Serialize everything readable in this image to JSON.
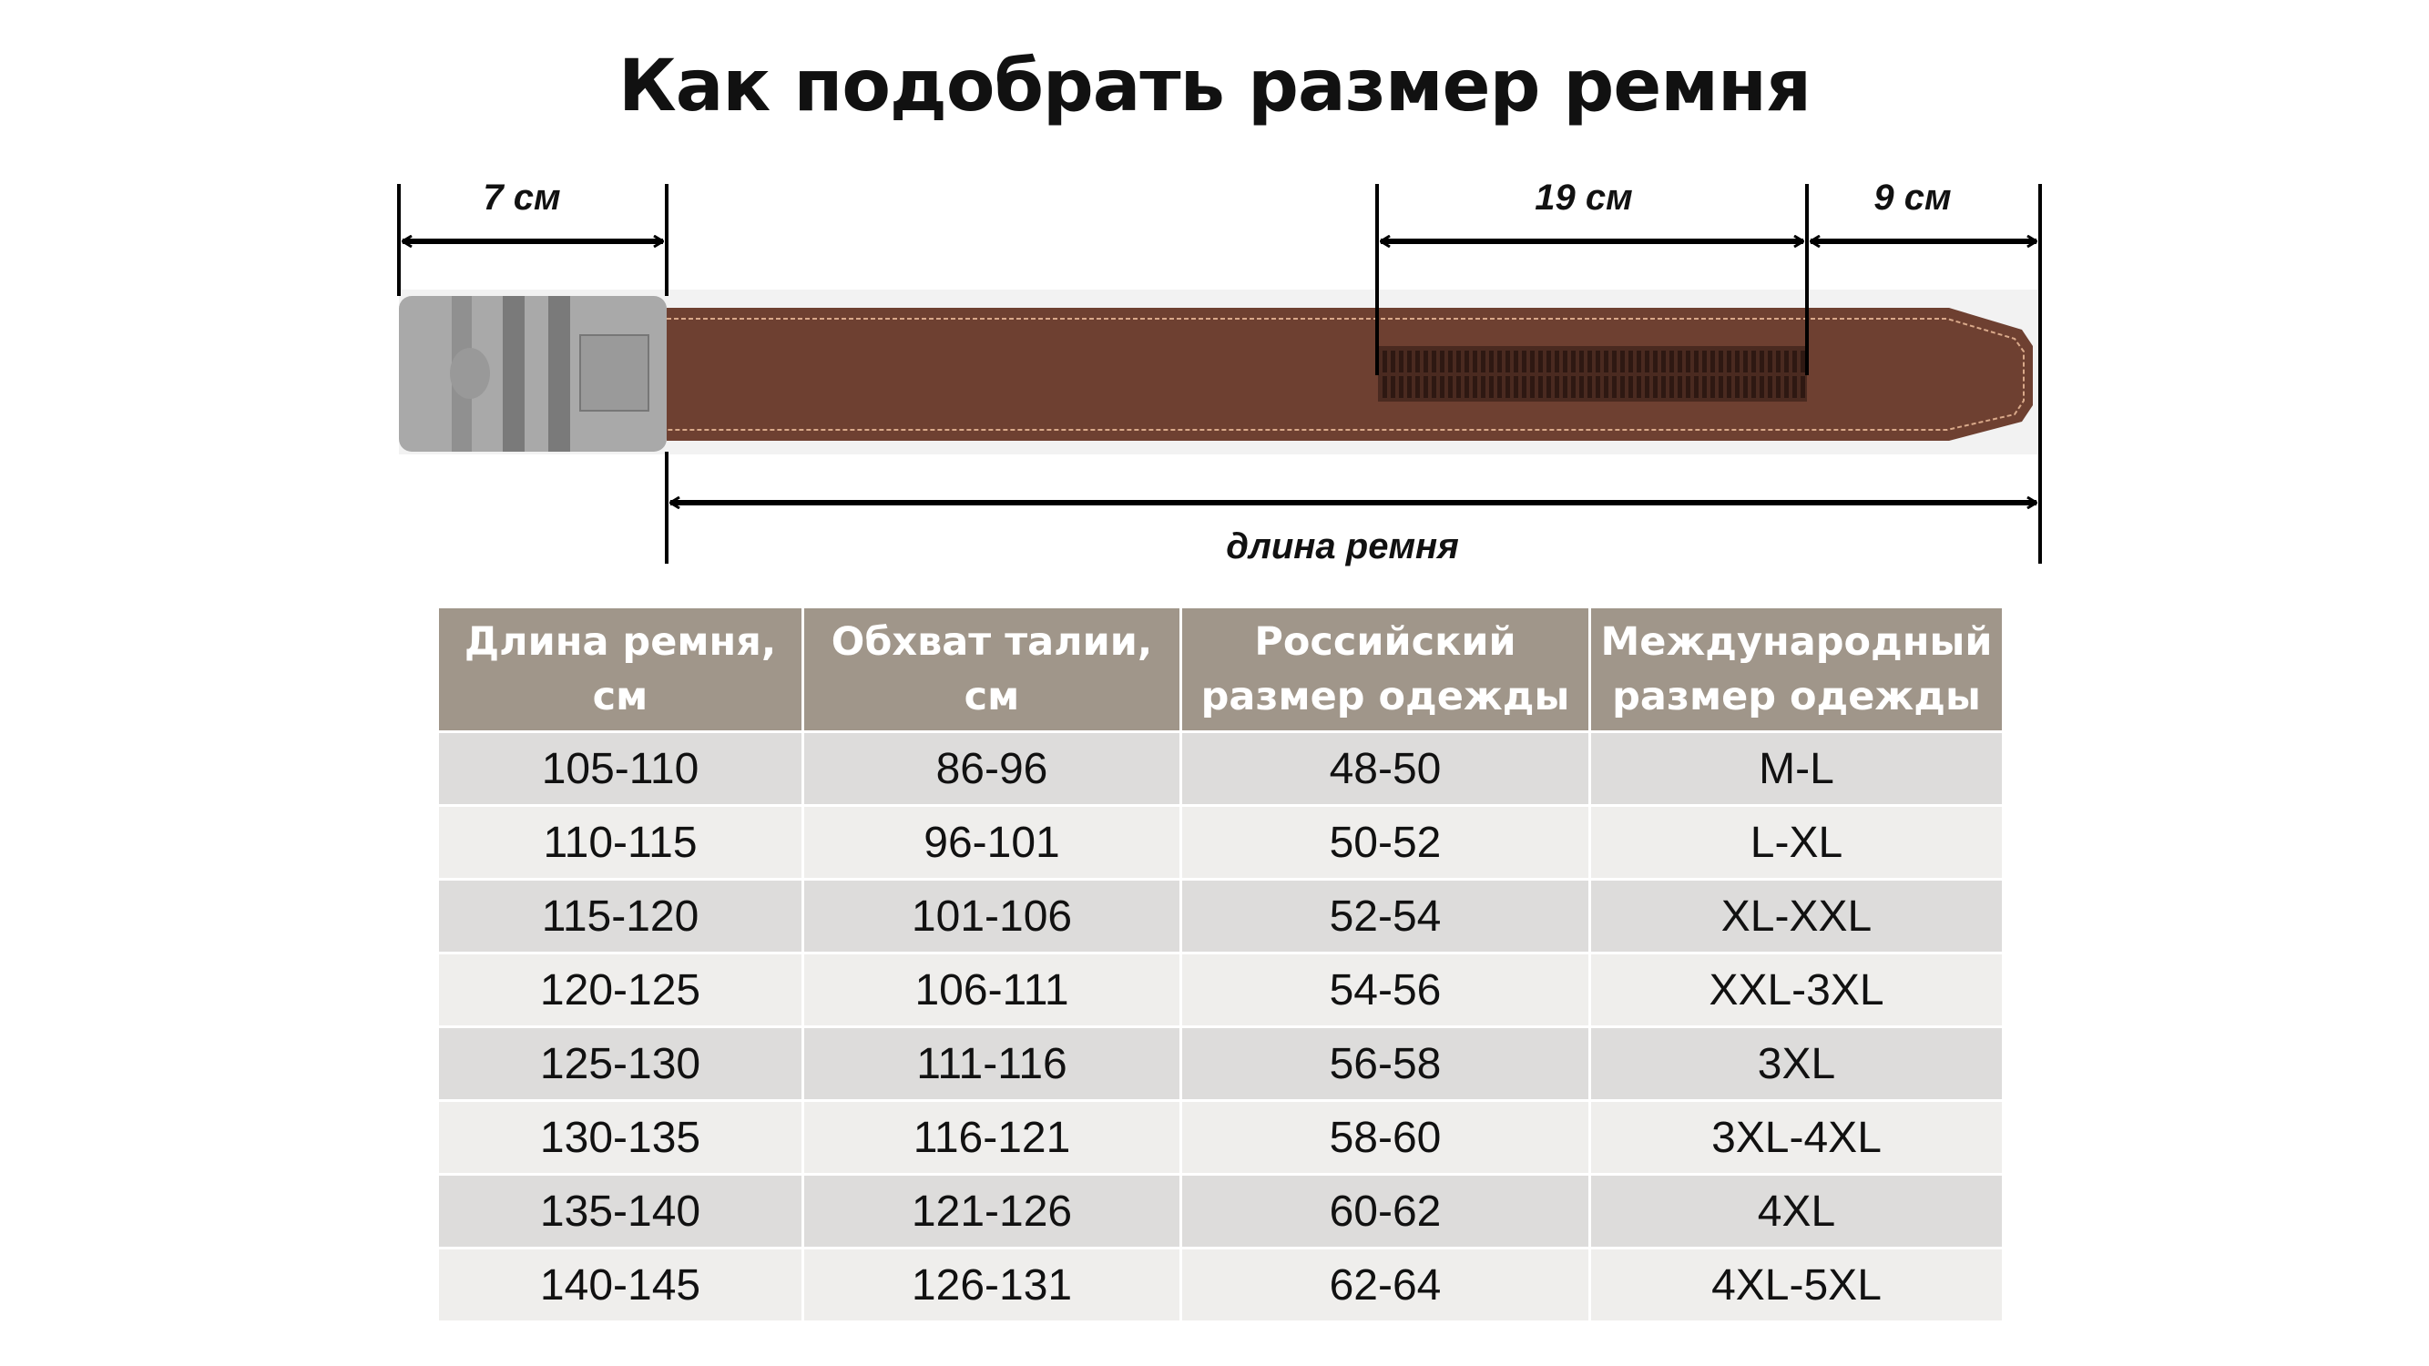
{
  "title": "Как подобрать размер ремня",
  "diagram": {
    "buckle_label": "7 см",
    "ratchet_label": "19 см",
    "tip_label": "9 см",
    "length_label": "длина ремня",
    "colors": {
      "strap": "#6e4031",
      "buckle": "#a8a8a8",
      "stitch": "#d9a98a"
    }
  },
  "table": {
    "headers": [
      "Длина ремня, см",
      "Обхват талии, см",
      "Российский размер одежды",
      "Международный размер одежды"
    ],
    "rows": [
      [
        "105-110",
        "86-96",
        "48-50",
        "M-L"
      ],
      [
        "110-115",
        "96-101",
        "50-52",
        "L-XL"
      ],
      [
        "115-120",
        "101-106",
        "52-54",
        "XL-XXL"
      ],
      [
        "120-125",
        "106-111",
        "54-56",
        "XXL-3XL"
      ],
      [
        "125-130",
        "111-116",
        "56-58",
        "3XL"
      ],
      [
        "130-135",
        "116-121",
        "58-60",
        "3XL-4XL"
      ],
      [
        "135-140",
        "121-126",
        "60-62",
        "4XL"
      ],
      [
        "140-145",
        "126-131",
        "62-64",
        "4XL-5XL"
      ]
    ],
    "header_color": "#a0968a"
  }
}
